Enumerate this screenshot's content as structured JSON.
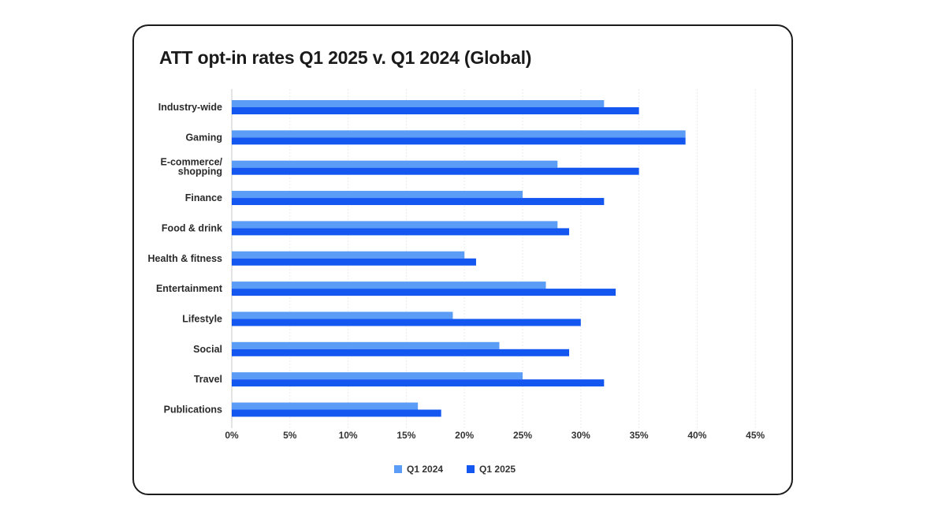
{
  "chart_data": {
    "type": "bar",
    "orientation": "horizontal",
    "title": "ATT opt-in rates Q1 2025 v. Q1 2024 (Global)",
    "categories": [
      "Industry-wide",
      "Gaming",
      "E-commerce/ shopping",
      "Finance",
      "Food & drink",
      "Health & fitness",
      "Entertainment",
      "Lifestyle",
      "Social",
      "Travel",
      "Publications"
    ],
    "series": [
      {
        "name": "Q1 2024",
        "color": "#5a9cf6",
        "values": [
          32,
          39,
          28,
          25,
          28,
          20,
          27,
          19,
          23,
          25,
          16
        ]
      },
      {
        "name": "Q1 2025",
        "color": "#1456f0",
        "values": [
          35,
          39,
          35,
          32,
          29,
          21,
          33,
          30,
          29,
          32,
          18
        ]
      }
    ],
    "xlim": [
      0,
      45
    ],
    "x_ticks": [
      "0%",
      "5%",
      "10%",
      "15%",
      "20%",
      "25%",
      "30%",
      "35%",
      "40%",
      "45%"
    ],
    "xlabel": "",
    "ylabel": "",
    "grid": "vertical",
    "legend_position": "bottom-center"
  }
}
